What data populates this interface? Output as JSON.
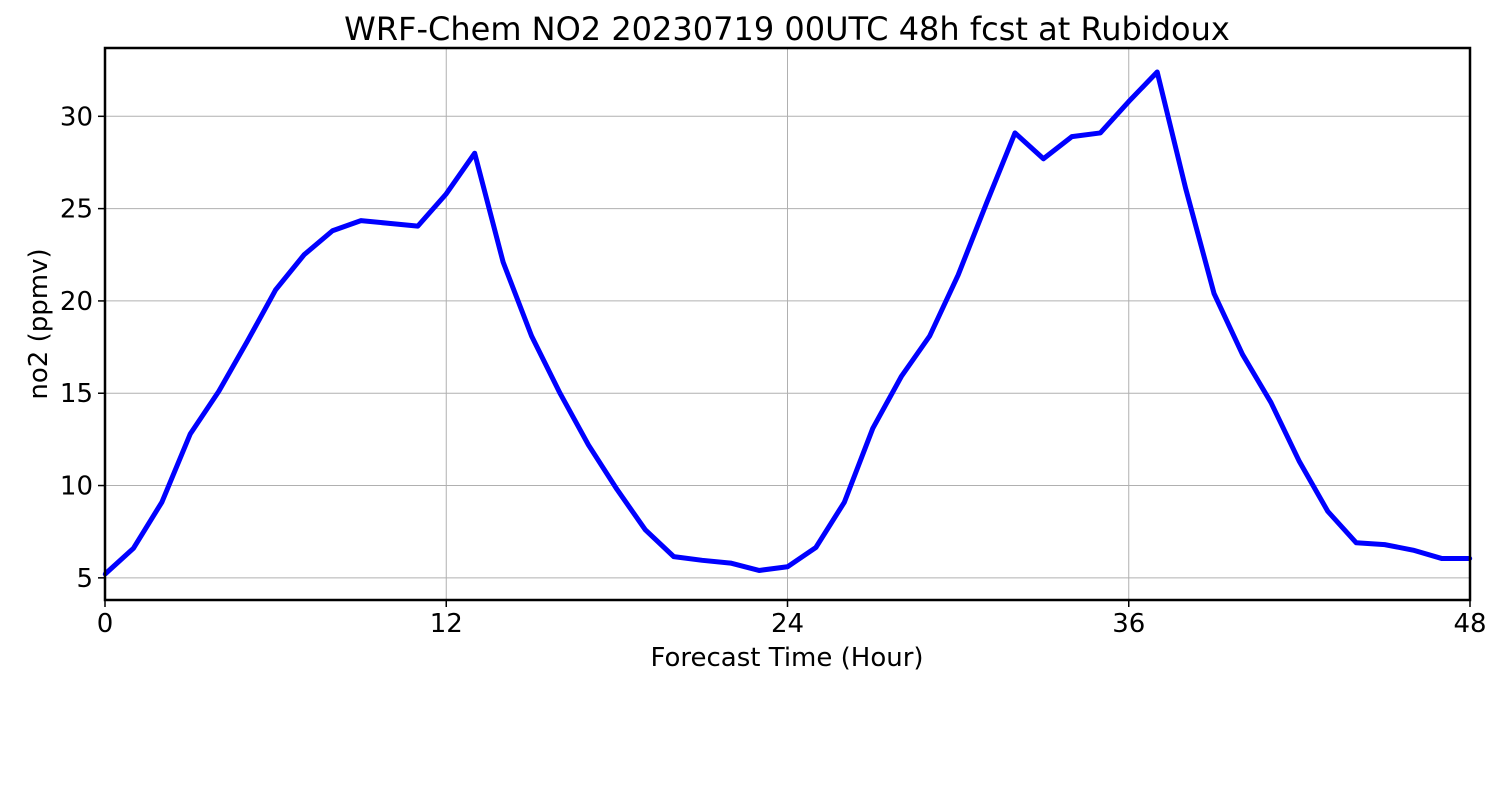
{
  "chart_data": {
    "type": "line",
    "title": "WRF-Chem NO2  20230719 00UTC 48h fcst at Rubidoux",
    "xlabel": "Forecast Time (Hour)",
    "ylabel": "no2  (ppmv)",
    "xlim": [
      0,
      48
    ],
    "ylim": [
      3.8,
      33.7
    ],
    "xticks": [
      0,
      12,
      24,
      36,
      48
    ],
    "yticks": [
      5,
      10,
      15,
      20,
      25,
      30
    ],
    "grid": true,
    "line_color": "#0000ff",
    "series": [
      {
        "x": [
          0,
          1,
          2,
          3,
          4,
          5,
          6,
          7,
          8,
          9,
          10,
          11,
          12,
          13,
          14,
          15,
          16,
          17,
          18,
          19,
          20,
          21,
          22,
          23,
          24,
          25,
          26,
          27,
          28,
          29,
          30,
          31,
          32,
          33,
          34,
          35,
          36,
          37,
          38,
          39,
          40,
          41,
          42,
          43,
          44,
          45,
          46,
          47,
          48
        ],
        "values": [
          5.2,
          6.6,
          9.1,
          12.8,
          15.1,
          17.8,
          20.6,
          22.5,
          23.8,
          24.35,
          24.2,
          24.05,
          25.8,
          28.0,
          22.1,
          18.1,
          15.0,
          12.2,
          9.8,
          7.6,
          6.15,
          5.95,
          5.8,
          5.4,
          5.6,
          6.65,
          9.1,
          13.1,
          15.9,
          18.1,
          21.4,
          25.3,
          29.1,
          27.7,
          28.9,
          29.1,
          30.8,
          32.4,
          26.1,
          20.4,
          17.1,
          14.5,
          11.3,
          8.6,
          6.9,
          6.8,
          6.5,
          6.05,
          6.05
        ]
      }
    ]
  }
}
